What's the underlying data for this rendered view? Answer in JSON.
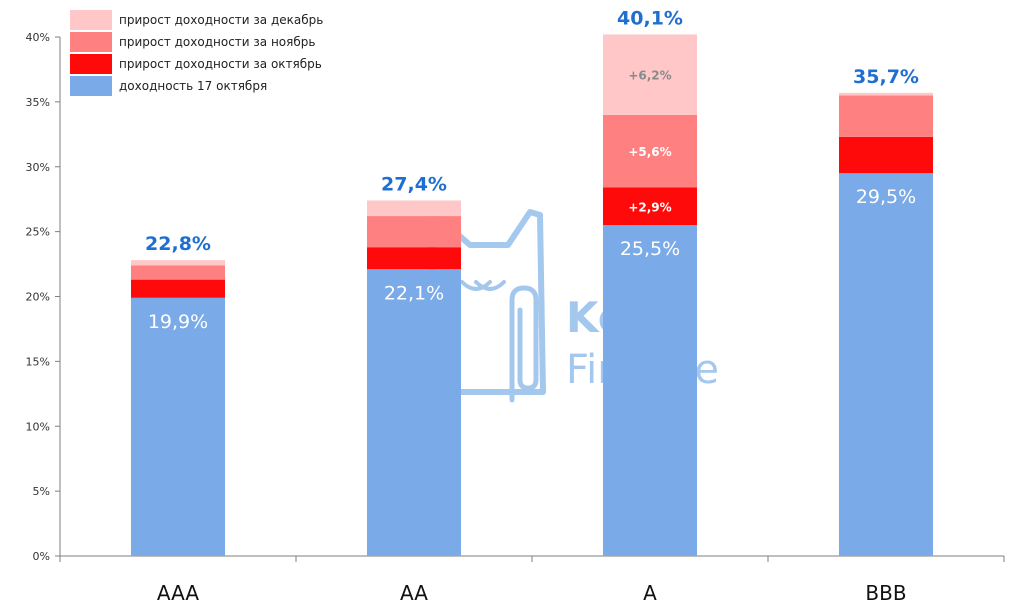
{
  "chart_data": {
    "type": "bar",
    "stacked": true,
    "categories": [
      "AAA",
      "AA",
      "A",
      "BBB"
    ],
    "series": [
      {
        "name": "доходность 17 октября",
        "color": "#7aaae8",
        "values": [
          19.9,
          22.1,
          25.5,
          29.5
        ]
      },
      {
        "name": "прирост доходности за октябрь",
        "color": "#ff0a0a",
        "values": [
          1.4,
          1.7,
          2.9,
          2.8
        ]
      },
      {
        "name": "прирост доходности за ноябрь",
        "color": "#ff8080",
        "values": [
          1.1,
          2.4,
          5.6,
          3.2
        ]
      },
      {
        "name": "прирост доходности за декабрь",
        "color": "#ffc7c7",
        "values": [
          0.4,
          1.2,
          6.2,
          0.2
        ]
      }
    ],
    "totals": [
      "22,8%",
      "27,4%",
      "40,1%",
      "35,7%"
    ],
    "base_labels": [
      "19,9%",
      "22,1%",
      "25,5%",
      "29,5%"
    ],
    "segment_labels": [
      {
        "category": "A",
        "series": "прирост доходности за октябрь",
        "text": "+2,9%",
        "color": "#ffffff"
      },
      {
        "category": "A",
        "series": "прирост доходности за ноябрь",
        "text": "+5,6%",
        "color": "#ffffff"
      },
      {
        "category": "A",
        "series": "прирост доходности за декабрь",
        "text": "+6,2%",
        "color": "#8a8a8a"
      }
    ],
    "legend": [
      {
        "label": "прирост доходности за декабрь",
        "color": "#ffc7c7"
      },
      {
        "label": "прирост доходности за ноябрь",
        "color": "#ff8080"
      },
      {
        "label": "прирост доходности за октябрь",
        "color": "#ff0a0a"
      },
      {
        "label": "доходность 17 октября",
        "color": "#7aaae8"
      }
    ],
    "legend_position": "top-left",
    "ylim": [
      0,
      40
    ],
    "yticks": [
      0,
      5,
      10,
      15,
      20,
      25,
      30,
      35,
      40
    ],
    "ytick_labels": [
      "0%",
      "5%",
      "10%",
      "15%",
      "20%",
      "25%",
      "30%",
      "35%",
      "40%"
    ],
    "grid": false,
    "title": "",
    "xlabel": "",
    "ylabel": ""
  },
  "watermark": {
    "line1": "Kot.",
    "line2": "Finance",
    "icon": "cat-icon"
  }
}
